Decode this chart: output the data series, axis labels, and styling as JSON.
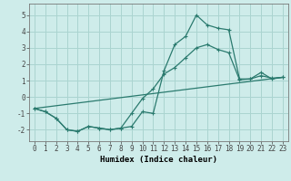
{
  "xlabel": "Humidex (Indice chaleur)",
  "background_color": "#ceecea",
  "grid_color": "#aad4d0",
  "line_color": "#2a7a6e",
  "xlim": [
    -0.5,
    23.5
  ],
  "ylim": [
    -2.7,
    5.7
  ],
  "yticks": [
    -2,
    -1,
    0,
    1,
    2,
    3,
    4,
    5
  ],
  "xticks": [
    0,
    1,
    2,
    3,
    4,
    5,
    6,
    7,
    8,
    9,
    10,
    11,
    12,
    13,
    14,
    15,
    16,
    17,
    18,
    19,
    20,
    21,
    22,
    23
  ],
  "series1_x": [
    0,
    1,
    2,
    3,
    4,
    5,
    6,
    7,
    8,
    9,
    10,
    11,
    12,
    13,
    14,
    15,
    16,
    17,
    18,
    19,
    20,
    21,
    22,
    23
  ],
  "series1_y": [
    -0.7,
    -0.9,
    -1.3,
    -2.0,
    -2.1,
    -1.8,
    -1.9,
    -2.0,
    -1.9,
    -1.8,
    -0.9,
    -1.0,
    1.6,
    3.2,
    3.7,
    5.0,
    4.4,
    4.2,
    4.1,
    1.1,
    1.1,
    1.5,
    1.1,
    1.2
  ],
  "series2_x": [
    0,
    1,
    2,
    3,
    4,
    5,
    6,
    7,
    8,
    9,
    10,
    11,
    12,
    13,
    14,
    15,
    16,
    17,
    18,
    19,
    20,
    21,
    22,
    23
  ],
  "series2_y": [
    -0.7,
    -0.9,
    -1.3,
    -2.0,
    -2.1,
    -1.8,
    -1.9,
    -2.0,
    -1.9,
    -1.0,
    -0.1,
    0.5,
    1.4,
    1.8,
    2.4,
    3.0,
    3.2,
    2.9,
    2.7,
    1.05,
    1.1,
    1.3,
    1.15,
    1.2
  ],
  "series3_x": [
    0,
    23
  ],
  "series3_y": [
    -0.7,
    1.2
  ],
  "tick_fontsize": 5.5,
  "xlabel_fontsize": 6.5,
  "marker_size": 2.5,
  "linewidth": 0.9
}
